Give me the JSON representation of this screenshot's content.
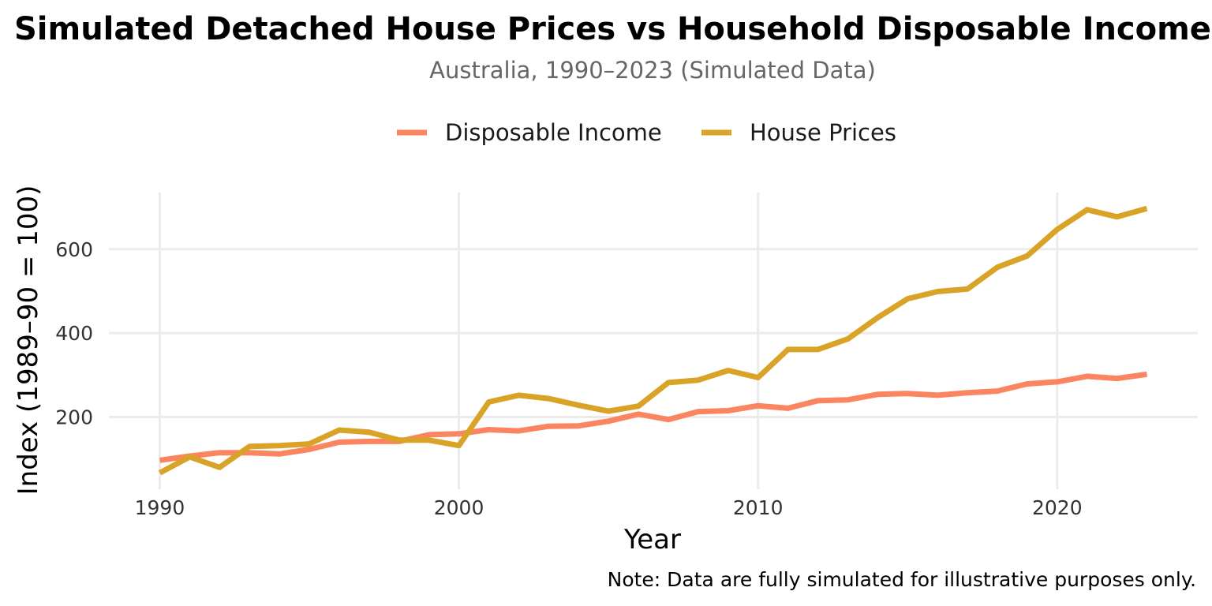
{
  "chart_data": {
    "type": "line",
    "title": "Simulated Detached House Prices vs Household Disposable Income",
    "subtitle": "Australia, 1990–2023 (Simulated Data)",
    "xlabel": "Year",
    "ylabel": "Index (1989–90 = 100)",
    "caption": "Note: Data are fully simulated for illustrative purposes only.",
    "x": [
      1990,
      1991,
      1992,
      1993,
      1994,
      1995,
      1996,
      1997,
      1998,
      1999,
      2000,
      2001,
      2002,
      2003,
      2004,
      2005,
      2006,
      2007,
      2008,
      2009,
      2010,
      2011,
      2012,
      2013,
      2014,
      2015,
      2016,
      2017,
      2018,
      2019,
      2020,
      2021,
      2022,
      2023
    ],
    "xlim": [
      1988.3,
      2024.7
    ],
    "ylim": [
      28,
      735
    ],
    "x_ticks": [
      1990,
      2000,
      2010,
      2020
    ],
    "y_ticks": [
      200,
      400,
      600
    ],
    "grid": true,
    "legend_position": "top",
    "series": [
      {
        "name": "Disposable Income",
        "color": "#FA8560",
        "values": [
          97,
          107,
          115,
          115,
          112,
          123,
          140,
          142,
          142,
          158,
          160,
          170,
          167,
          178,
          179,
          190,
          207,
          194,
          213,
          215,
          227,
          221,
          239,
          241,
          254,
          256,
          252,
          258,
          262,
          279,
          284,
          297,
          292,
          302
        ]
      },
      {
        "name": "House Prices",
        "color": "#D9A328",
        "values": [
          67,
          105,
          80,
          130,
          132,
          136,
          169,
          164,
          145,
          145,
          132,
          236,
          252,
          244,
          228,
          214,
          226,
          282,
          288,
          311,
          294,
          361,
          361,
          386,
          437,
          482,
          499,
          505,
          557,
          584,
          647,
          694,
          677,
          697
        ]
      }
    ]
  }
}
